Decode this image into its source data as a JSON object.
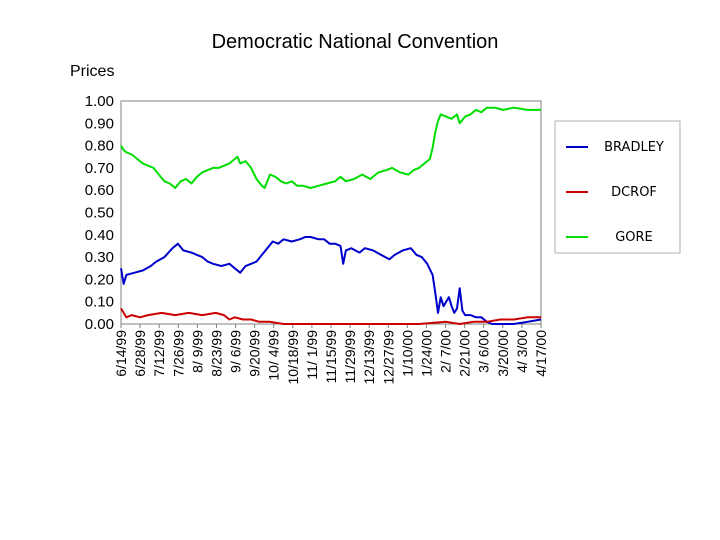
{
  "chart_data": {
    "type": "line",
    "title": "Democratic National Convention",
    "ylabel": "Prices",
    "xlabel": "",
    "ylim": [
      0,
      1.0
    ],
    "yticks": [
      "1.00",
      "0.90",
      "0.80",
      "0.70",
      "0.60",
      "0.50",
      "0.40",
      "0.30",
      "0.20",
      "0.10",
      "0.00"
    ],
    "categories": [
      "6/14/99",
      "6/28/99",
      "7/12/99",
      "7/26/99",
      "8/ 9/99",
      "8/23/99",
      "9/ 6/99",
      "9/20/99",
      "10/ 4/99",
      "10/18/99",
      "11/ 1/99",
      "11/15/99",
      "11/29/99",
      "12/13/99",
      "12/27/99",
      "1/10/00",
      "1/24/00",
      "2/ 7/00",
      "2/21/00",
      "3/ 6/00",
      "3/20/00",
      "4/ 3/00",
      "4/17/00"
    ],
    "x_range_days": [
      0,
      310
    ],
    "series": [
      {
        "name": "BRADLEY",
        "color": "#0000cc",
        "points": [
          [
            0,
            0.25
          ],
          [
            2,
            0.18
          ],
          [
            4,
            0.22
          ],
          [
            10,
            0.23
          ],
          [
            16,
            0.24
          ],
          [
            22,
            0.26
          ],
          [
            26,
            0.28
          ],
          [
            32,
            0.3
          ],
          [
            38,
            0.34
          ],
          [
            42,
            0.36
          ],
          [
            46,
            0.33
          ],
          [
            52,
            0.32
          ],
          [
            56,
            0.31
          ],
          [
            60,
            0.3
          ],
          [
            64,
            0.28
          ],
          [
            68,
            0.27
          ],
          [
            74,
            0.26
          ],
          [
            80,
            0.27
          ],
          [
            84,
            0.25
          ],
          [
            88,
            0.23
          ],
          [
            92,
            0.26
          ],
          [
            96,
            0.27
          ],
          [
            100,
            0.28
          ],
          [
            104,
            0.31
          ],
          [
            108,
            0.34
          ],
          [
            112,
            0.37
          ],
          [
            116,
            0.36
          ],
          [
            120,
            0.38
          ],
          [
            126,
            0.37
          ],
          [
            132,
            0.38
          ],
          [
            136,
            0.39
          ],
          [
            140,
            0.39
          ],
          [
            146,
            0.38
          ],
          [
            150,
            0.38
          ],
          [
            154,
            0.36
          ],
          [
            158,
            0.36
          ],
          [
            162,
            0.35
          ],
          [
            164,
            0.27
          ],
          [
            166,
            0.33
          ],
          [
            170,
            0.34
          ],
          [
            176,
            0.32
          ],
          [
            180,
            0.34
          ],
          [
            186,
            0.33
          ],
          [
            192,
            0.31
          ],
          [
            198,
            0.29
          ],
          [
            202,
            0.31
          ],
          [
            208,
            0.33
          ],
          [
            214,
            0.34
          ],
          [
            218,
            0.31
          ],
          [
            222,
            0.3
          ],
          [
            226,
            0.27
          ],
          [
            230,
            0.22
          ],
          [
            232,
            0.14
          ],
          [
            234,
            0.05
          ],
          [
            236,
            0.12
          ],
          [
            238,
            0.08
          ],
          [
            240,
            0.1
          ],
          [
            242,
            0.12
          ],
          [
            244,
            0.08
          ],
          [
            246,
            0.05
          ],
          [
            248,
            0.07
          ],
          [
            250,
            0.16
          ],
          [
            252,
            0.06
          ],
          [
            254,
            0.04
          ],
          [
            258,
            0.04
          ],
          [
            262,
            0.03
          ],
          [
            266,
            0.03
          ],
          [
            270,
            0.01
          ],
          [
            274,
            0.0
          ],
          [
            290,
            0.0
          ],
          [
            300,
            0.01
          ],
          [
            310,
            0.02
          ]
        ]
      },
      {
        "name": "DCROF",
        "color": "#cc0000",
        "points": [
          [
            0,
            0.07
          ],
          [
            2,
            0.05
          ],
          [
            4,
            0.03
          ],
          [
            8,
            0.04
          ],
          [
            14,
            0.03
          ],
          [
            20,
            0.04
          ],
          [
            30,
            0.05
          ],
          [
            40,
            0.04
          ],
          [
            50,
            0.05
          ],
          [
            60,
            0.04
          ],
          [
            70,
            0.05
          ],
          [
            76,
            0.04
          ],
          [
            80,
            0.02
          ],
          [
            84,
            0.03
          ],
          [
            90,
            0.02
          ],
          [
            96,
            0.02
          ],
          [
            102,
            0.01
          ],
          [
            110,
            0.01
          ],
          [
            120,
            0.0
          ],
          [
            140,
            0.0
          ],
          [
            180,
            0.0
          ],
          [
            220,
            0.0
          ],
          [
            240,
            0.01
          ],
          [
            250,
            0.0
          ],
          [
            260,
            0.01
          ],
          [
            270,
            0.01
          ],
          [
            280,
            0.02
          ],
          [
            290,
            0.02
          ],
          [
            300,
            0.03
          ],
          [
            310,
            0.03
          ]
        ]
      },
      {
        "name": "GORE",
        "color": "#00dd00",
        "points": [
          [
            0,
            0.8
          ],
          [
            2,
            0.78
          ],
          [
            4,
            0.77
          ],
          [
            8,
            0.76
          ],
          [
            12,
            0.74
          ],
          [
            16,
            0.72
          ],
          [
            20,
            0.71
          ],
          [
            24,
            0.7
          ],
          [
            28,
            0.67
          ],
          [
            32,
            0.64
          ],
          [
            36,
            0.63
          ],
          [
            40,
            0.61
          ],
          [
            44,
            0.64
          ],
          [
            48,
            0.65
          ],
          [
            52,
            0.63
          ],
          [
            56,
            0.66
          ],
          [
            60,
            0.68
          ],
          [
            64,
            0.69
          ],
          [
            68,
            0.7
          ],
          [
            72,
            0.7
          ],
          [
            76,
            0.71
          ],
          [
            80,
            0.72
          ],
          [
            84,
            0.74
          ],
          [
            86,
            0.75
          ],
          [
            88,
            0.72
          ],
          [
            92,
            0.73
          ],
          [
            96,
            0.7
          ],
          [
            100,
            0.65
          ],
          [
            104,
            0.62
          ],
          [
            106,
            0.61
          ],
          [
            110,
            0.67
          ],
          [
            114,
            0.66
          ],
          [
            118,
            0.64
          ],
          [
            122,
            0.63
          ],
          [
            126,
            0.64
          ],
          [
            130,
            0.62
          ],
          [
            134,
            0.62
          ],
          [
            140,
            0.61
          ],
          [
            146,
            0.62
          ],
          [
            152,
            0.63
          ],
          [
            158,
            0.64
          ],
          [
            162,
            0.66
          ],
          [
            166,
            0.64
          ],
          [
            172,
            0.65
          ],
          [
            178,
            0.67
          ],
          [
            184,
            0.65
          ],
          [
            190,
            0.68
          ],
          [
            196,
            0.69
          ],
          [
            200,
            0.7
          ],
          [
            206,
            0.68
          ],
          [
            212,
            0.67
          ],
          [
            216,
            0.69
          ],
          [
            220,
            0.7
          ],
          [
            224,
            0.72
          ],
          [
            228,
            0.74
          ],
          [
            230,
            0.79
          ],
          [
            232,
            0.86
          ],
          [
            234,
            0.91
          ],
          [
            236,
            0.94
          ],
          [
            240,
            0.93
          ],
          [
            244,
            0.92
          ],
          [
            248,
            0.94
          ],
          [
            250,
            0.9
          ],
          [
            254,
            0.93
          ],
          [
            258,
            0.94
          ],
          [
            262,
            0.96
          ],
          [
            266,
            0.95
          ],
          [
            270,
            0.97
          ],
          [
            276,
            0.97
          ],
          [
            282,
            0.96
          ],
          [
            290,
            0.97
          ],
          [
            300,
            0.96
          ],
          [
            310,
            0.96
          ]
        ]
      }
    ],
    "legend": {
      "position": "right",
      "entries": [
        "BRADLEY",
        "DCROF",
        "GORE"
      ]
    },
    "grid": false
  }
}
